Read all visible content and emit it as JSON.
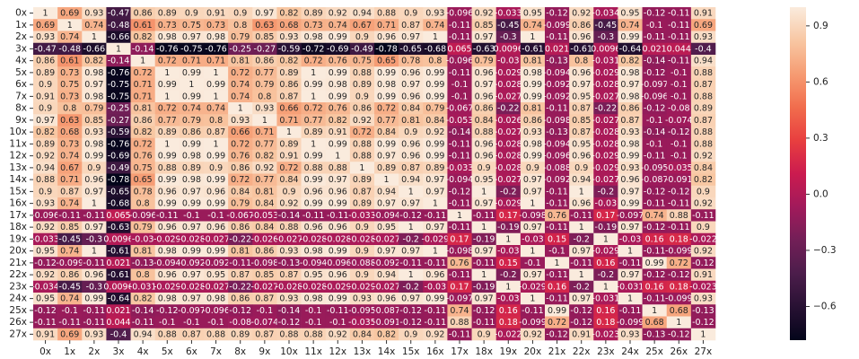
{
  "chart_data": {
    "type": "heatmap",
    "colormap": "rocket",
    "x": [
      "0x",
      "1x",
      "2x",
      "3x",
      "4x",
      "5x",
      "6x",
      "7x",
      "8x",
      "9x",
      "10x",
      "11x",
      "12x",
      "13x",
      "14x",
      "15x",
      "16x",
      "17x",
      "18x",
      "19x",
      "20x",
      "21x",
      "22x",
      "23x",
      "24x",
      "25x",
      "26x",
      "27x"
    ],
    "y": [
      "0x",
      "1x",
      "2x",
      "3x",
      "4x",
      "5x",
      "6x",
      "7x",
      "8x",
      "9x",
      "10x",
      "11x",
      "12x",
      "13x",
      "14x",
      "15x",
      "16x",
      "17x",
      "18x",
      "19x",
      "20x",
      "21x",
      "22x",
      "23x",
      "24x",
      "25x",
      "26x",
      "27x"
    ],
    "values": [
      [
        1,
        0.69,
        0.93,
        -0.47,
        0.86,
        0.89,
        0.9,
        0.91,
        0.9,
        0.97,
        0.82,
        0.89,
        0.92,
        0.94,
        0.88,
        0.9,
        0.93,
        -0.096,
        0.92,
        -0.033,
        0.95,
        -0.12,
        0.92,
        -0.034,
        0.95,
        -0.12,
        -0.11,
        0.91
      ],
      [
        0.69,
        1,
        0.74,
        -0.48,
        0.61,
        0.73,
        0.75,
        0.73,
        0.8,
        0.63,
        0.68,
        0.73,
        0.74,
        0.67,
        0.71,
        0.87,
        0.74,
        -0.11,
        0.85,
        -0.45,
        0.74,
        -0.099,
        0.86,
        -0.45,
        0.74,
        -0.1,
        -0.11,
        0.69
      ],
      [
        0.93,
        0.74,
        1,
        -0.66,
        0.82,
        0.98,
        0.97,
        0.98,
        0.79,
        0.85,
        0.93,
        0.98,
        0.99,
        0.9,
        0.96,
        0.97,
        1,
        -0.11,
        0.97,
        -0.3,
        1,
        -0.11,
        0.96,
        -0.3,
        0.99,
        -0.11,
        -0.11,
        0.93
      ],
      [
        -0.47,
        -0.48,
        -0.66,
        1,
        -0.14,
        -0.76,
        -0.75,
        -0.76,
        -0.25,
        -0.27,
        -0.59,
        -0.72,
        -0.69,
        -0.49,
        -0.78,
        -0.65,
        -0.68,
        0.065,
        -0.63,
        0.0096,
        -0.61,
        0.021,
        -0.61,
        0.0096,
        -0.64,
        0.021,
        0.044,
        -0.4
      ],
      [
        0.86,
        0.61,
        0.82,
        -0.14,
        1,
        0.72,
        0.71,
        0.71,
        0.81,
        0.86,
        0.82,
        0.72,
        0.76,
        0.75,
        0.65,
        0.78,
        0.8,
        -0.096,
        0.79,
        -0.03,
        0.81,
        -0.13,
        0.8,
        -0.031,
        0.82,
        -0.14,
        -0.11,
        0.94
      ],
      [
        0.89,
        0.73,
        0.98,
        -0.76,
        0.72,
        1,
        0.99,
        1,
        0.72,
        0.77,
        0.89,
        1,
        0.99,
        0.88,
        0.99,
        0.96,
        0.99,
        -0.11,
        0.96,
        -0.029,
        0.98,
        -0.094,
        0.96,
        -0.029,
        0.98,
        -0.12,
        -0.1,
        0.88
      ],
      [
        0.9,
        0.75,
        0.97,
        -0.75,
        0.71,
        0.99,
        1,
        0.99,
        0.74,
        0.79,
        0.86,
        0.99,
        0.98,
        0.89,
        0.98,
        0.97,
        0.99,
        -0.1,
        0.97,
        -0.028,
        0.99,
        -0.092,
        0.97,
        -0.028,
        0.97,
        -0.097,
        -0.1,
        0.87
      ],
      [
        0.91,
        0.73,
        0.98,
        -0.75,
        0.71,
        1,
        0.99,
        1,
        0.74,
        0.8,
        0.87,
        1,
        0.99,
        0.9,
        0.99,
        0.96,
        0.99,
        -0.1,
        0.96,
        -0.027,
        0.99,
        -0.092,
        0.95,
        -0.027,
        0.98,
        -0.096,
        -0.1,
        0.88
      ],
      [
        0.9,
        0.8,
        0.79,
        -0.25,
        0.81,
        0.72,
        0.74,
        0.74,
        1,
        0.93,
        0.66,
        0.72,
        0.76,
        0.86,
        0.72,
        0.84,
        0.79,
        -0.067,
        0.86,
        -0.22,
        0.81,
        -0.11,
        0.87,
        -0.22,
        0.86,
        -0.12,
        -0.08,
        0.89
      ],
      [
        0.97,
        0.63,
        0.85,
        -0.27,
        0.86,
        0.77,
        0.79,
        0.8,
        0.93,
        1,
        0.71,
        0.77,
        0.82,
        0.92,
        0.77,
        0.81,
        0.84,
        -0.053,
        0.84,
        -0.026,
        0.86,
        -0.098,
        0.85,
        -0.027,
        0.87,
        -0.1,
        -0.074,
        0.87
      ],
      [
        0.82,
        0.68,
        0.93,
        -0.59,
        0.82,
        0.89,
        0.86,
        0.87,
        0.66,
        0.71,
        1,
        0.89,
        0.91,
        0.72,
        0.84,
        0.9,
        0.92,
        -0.14,
        0.88,
        -0.027,
        0.93,
        -0.13,
        0.87,
        -0.028,
        0.93,
        -0.14,
        -0.12,
        0.88
      ],
      [
        0.89,
        0.73,
        0.98,
        -0.76,
        0.72,
        1,
        0.99,
        1,
        0.72,
        0.77,
        0.89,
        1,
        0.99,
        0.88,
        0.99,
        0.96,
        0.99,
        -0.11,
        0.96,
        -0.028,
        0.98,
        -0.094,
        0.95,
        -0.028,
        0.98,
        -0.1,
        -0.1,
        0.88
      ],
      [
        0.92,
        0.74,
        0.99,
        -0.69,
        0.76,
        0.99,
        0.98,
        0.99,
        0.76,
        0.82,
        0.91,
        0.99,
        1,
        0.88,
        0.97,
        0.96,
        0.99,
        -0.11,
        0.96,
        -0.028,
        0.99,
        -0.096,
        0.96,
        -0.029,
        0.99,
        -0.11,
        -0.1,
        0.92
      ],
      [
        0.94,
        0.67,
        0.9,
        -0.49,
        0.75,
        0.88,
        0.89,
        0.9,
        0.86,
        0.92,
        0.72,
        0.88,
        0.88,
        1,
        0.89,
        0.87,
        0.89,
        -0.033,
        0.9,
        -0.028,
        0.9,
        -0.088,
        0.9,
        -0.029,
        0.93,
        -0.095,
        -0.035,
        0.84
      ],
      [
        0.88,
        0.71,
        0.96,
        -0.78,
        0.65,
        0.99,
        0.98,
        0.99,
        0.72,
        0.77,
        0.84,
        0.99,
        0.97,
        0.89,
        1,
        0.94,
        0.97,
        -0.094,
        0.95,
        -0.027,
        0.97,
        -0.092,
        0.94,
        -0.027,
        0.96,
        -0.087,
        -0.091,
        0.82
      ],
      [
        0.9,
        0.87,
        0.97,
        -0.65,
        0.78,
        0.96,
        0.97,
        0.96,
        0.84,
        0.81,
        0.9,
        0.96,
        0.96,
        0.87,
        0.94,
        1,
        0.97,
        -0.12,
        1,
        -0.2,
        0.97,
        -0.11,
        1,
        -0.2,
        0.97,
        -0.12,
        -0.12,
        0.9
      ],
      [
        0.93,
        0.74,
        1,
        -0.68,
        0.8,
        0.99,
        0.99,
        0.99,
        0.79,
        0.84,
        0.92,
        0.99,
        0.99,
        0.89,
        0.97,
        0.97,
        1,
        -0.11,
        0.97,
        -0.029,
        1,
        -0.11,
        0.96,
        -0.03,
        0.99,
        -0.11,
        -0.11,
        0.92
      ],
      [
        -0.096,
        -0.11,
        -0.11,
        0.065,
        -0.096,
        -0.11,
        -0.1,
        -0.1,
        -0.067,
        -0.053,
        -0.14,
        -0.11,
        -0.11,
        -0.033,
        -0.094,
        -0.12,
        -0.11,
        1,
        -0.11,
        0.17,
        -0.098,
        0.76,
        -0.11,
        0.17,
        -0.097,
        0.74,
        0.88,
        -0.11
      ],
      [
        0.92,
        0.85,
        0.97,
        -0.63,
        0.79,
        0.96,
        0.97,
        0.96,
        0.86,
        0.84,
        0.88,
        0.96,
        0.96,
        0.9,
        0.95,
        1,
        0.97,
        -0.11,
        1,
        -0.19,
        0.97,
        -0.11,
        1,
        -0.19,
        0.97,
        -0.12,
        -0.11,
        0.9
      ],
      [
        -0.033,
        -0.45,
        -0.3,
        0.0096,
        -0.03,
        -0.029,
        -0.028,
        -0.027,
        -0.22,
        -0.026,
        -0.027,
        -0.028,
        -0.028,
        -0.028,
        -0.027,
        -0.2,
        -0.029,
        0.17,
        -0.19,
        1,
        -0.03,
        0.15,
        -0.2,
        1,
        -0.03,
        0.16,
        0.18,
        -0.022
      ],
      [
        0.95,
        0.74,
        1,
        -0.61,
        0.81,
        0.98,
        0.99,
        0.99,
        0.81,
        0.86,
        0.93,
        0.98,
        0.99,
        0.9,
        0.97,
        0.97,
        1,
        -0.098,
        0.97,
        -0.03,
        1,
        -0.1,
        0.97,
        -0.029,
        1,
        -0.11,
        -0.099,
        0.92
      ],
      [
        -0.12,
        -0.099,
        -0.11,
        0.021,
        -0.13,
        -0.094,
        -0.092,
        -0.092,
        -0.11,
        -0.098,
        -0.13,
        -0.094,
        -0.096,
        -0.088,
        -0.092,
        -0.11,
        -0.11,
        0.76,
        -0.11,
        0.15,
        -0.1,
        1,
        -0.11,
        0.16,
        -0.11,
        0.99,
        0.72,
        -0.12
      ],
      [
        0.92,
        0.86,
        0.96,
        -0.61,
        0.8,
        0.96,
        0.97,
        0.95,
        0.87,
        0.85,
        0.87,
        0.95,
        0.96,
        0.9,
        0.94,
        1,
        0.96,
        -0.11,
        1,
        -0.2,
        0.97,
        -0.11,
        1,
        -0.2,
        0.97,
        -0.12,
        -0.12,
        0.91
      ],
      [
        -0.034,
        -0.45,
        -0.3,
        0.0096,
        -0.031,
        -0.029,
        -0.028,
        -0.027,
        -0.22,
        -0.027,
        -0.028,
        -0.028,
        -0.029,
        -0.029,
        -0.027,
        -0.2,
        -0.03,
        0.17,
        -0.19,
        1,
        -0.029,
        0.16,
        -0.2,
        1,
        -0.031,
        0.16,
        0.18,
        -0.023
      ],
      [
        0.95,
        0.74,
        0.99,
        -0.64,
        0.82,
        0.98,
        0.97,
        0.98,
        0.86,
        0.87,
        0.93,
        0.98,
        0.99,
        0.93,
        0.96,
        0.97,
        0.99,
        -0.097,
        0.97,
        -0.03,
        1,
        -0.11,
        0.97,
        -0.031,
        1,
        -0.11,
        -0.099,
        0.93
      ],
      [
        -0.12,
        -0.1,
        -0.11,
        0.021,
        -0.14,
        -0.12,
        -0.097,
        -0.096,
        -0.12,
        -0.1,
        -0.14,
        -0.1,
        -0.11,
        -0.095,
        -0.087,
        -0.12,
        -0.11,
        0.74,
        -0.12,
        0.16,
        -0.11,
        0.99,
        -0.12,
        0.16,
        -0.11,
        1,
        0.68,
        -0.13
      ],
      [
        -0.11,
        -0.11,
        -0.11,
        0.044,
        -0.11,
        -0.1,
        -0.1,
        -0.1,
        -0.08,
        -0.074,
        -0.12,
        -0.1,
        -0.1,
        -0.035,
        -0.091,
        -0.12,
        -0.11,
        0.88,
        -0.11,
        0.18,
        -0.099,
        0.72,
        -0.12,
        0.18,
        -0.099,
        0.68,
        1,
        -0.12
      ],
      [
        0.91,
        0.69,
        0.93,
        -0.4,
        0.94,
        0.88,
        0.87,
        0.88,
        0.89,
        0.87,
        0.88,
        0.88,
        0.92,
        0.84,
        0.82,
        0.9,
        0.92,
        -0.11,
        0.9,
        -0.022,
        0.92,
        -0.12,
        0.91,
        -0.023,
        0.93,
        -0.13,
        -0.12,
        1
      ]
    ],
    "zlim": [
      -0.78,
      1
    ],
    "zticks": [
      {
        "value": -0.6,
        "label": "−0.6"
      },
      {
        "value": -0.3,
        "label": "−0.3"
      },
      {
        "value": 0,
        "label": "0.0"
      },
      0.3,
      0.6,
      0.9
    ]
  }
}
